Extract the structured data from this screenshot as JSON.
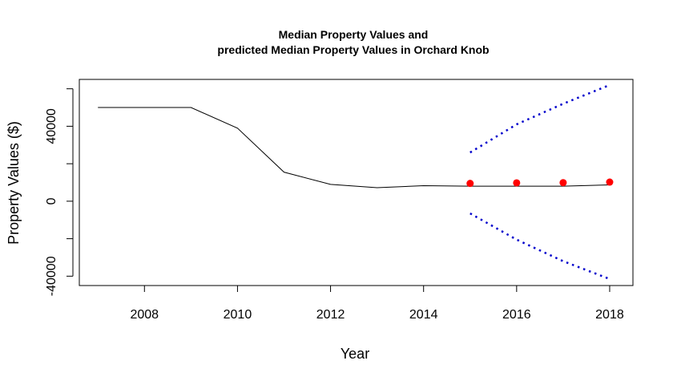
{
  "chart_data": {
    "type": "line",
    "title_lines": [
      "Median Property Values and",
      "predicted Median Property Values in Orchard Knob"
    ],
    "xlabel": "Year",
    "ylabel": "Property Values ($)",
    "xlim": [
      2006.6,
      2018.5
    ],
    "ylim": [
      -45000,
      65000
    ],
    "x_ticks": [
      2008,
      2010,
      2012,
      2014,
      2016,
      2018
    ],
    "y_ticks": [
      -40000,
      0,
      40000
    ],
    "y_minor_ticks": [
      -20000,
      20000,
      60000
    ],
    "grid": false,
    "legend": "none",
    "series": [
      {
        "kind": "line",
        "color": "#000000",
        "style": "solid",
        "x": [
          2007,
          2008,
          2009,
          2010,
          2011,
          2012,
          2013,
          2014,
          2015,
          2016,
          2017,
          2018
        ],
        "y": [
          50000,
          50000,
          50000,
          39000,
          15500,
          9000,
          7200,
          8300,
          8000,
          8000,
          8000,
          8700
        ]
      },
      {
        "kind": "points",
        "color": "#ff0000",
        "x": [
          2015,
          2016,
          2017,
          2018
        ],
        "y": [
          9500,
          9800,
          9900,
          10200
        ]
      },
      {
        "kind": "line",
        "color": "#0000cc",
        "style": "dotted",
        "x": [
          2015,
          2016,
          2017,
          2018
        ],
        "y": [
          26000,
          41000,
          52000,
          62000
        ]
      },
      {
        "kind": "line",
        "color": "#0000cc",
        "style": "dotted",
        "x": [
          2015,
          2016,
          2017,
          2018
        ],
        "y": [
          -6500,
          -20500,
          -32000,
          -41500
        ]
      }
    ]
  }
}
